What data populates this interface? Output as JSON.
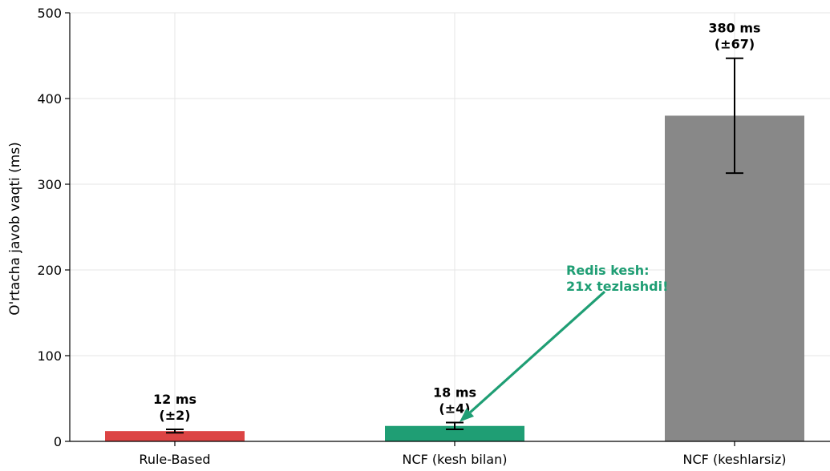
{
  "chart_data": {
    "type": "bar",
    "categories": [
      "Rule-Based",
      "NCF (kesh bilan)",
      "NCF (keshlarsiz)"
    ],
    "values": [
      12,
      18,
      380
    ],
    "errors": [
      2,
      4,
      67
    ],
    "colors": [
      "#dc4444",
      "#1f9e74",
      "#888888"
    ],
    "data_labels": [
      [
        "12 ms",
        "(±2)"
      ],
      [
        "18 ms",
        "(±4)"
      ],
      [
        "380 ms",
        "(±67)"
      ]
    ],
    "ylabel": "O'rtacha javob vaqti (ms)",
    "xlabel": "",
    "title": "",
    "ylim": [
      0,
      500
    ],
    "yticks": [
      0,
      100,
      200,
      300,
      400,
      500
    ],
    "grid": true,
    "annotation": {
      "lines": [
        "Redis kesh:",
        "21x tezlashdi!"
      ],
      "color": "#1f9e74",
      "text_at": [
        "NCF (keshlarsiz)",
        213
      ],
      "arrow_to": [
        "NCF (kesh bilan)",
        18
      ]
    }
  }
}
